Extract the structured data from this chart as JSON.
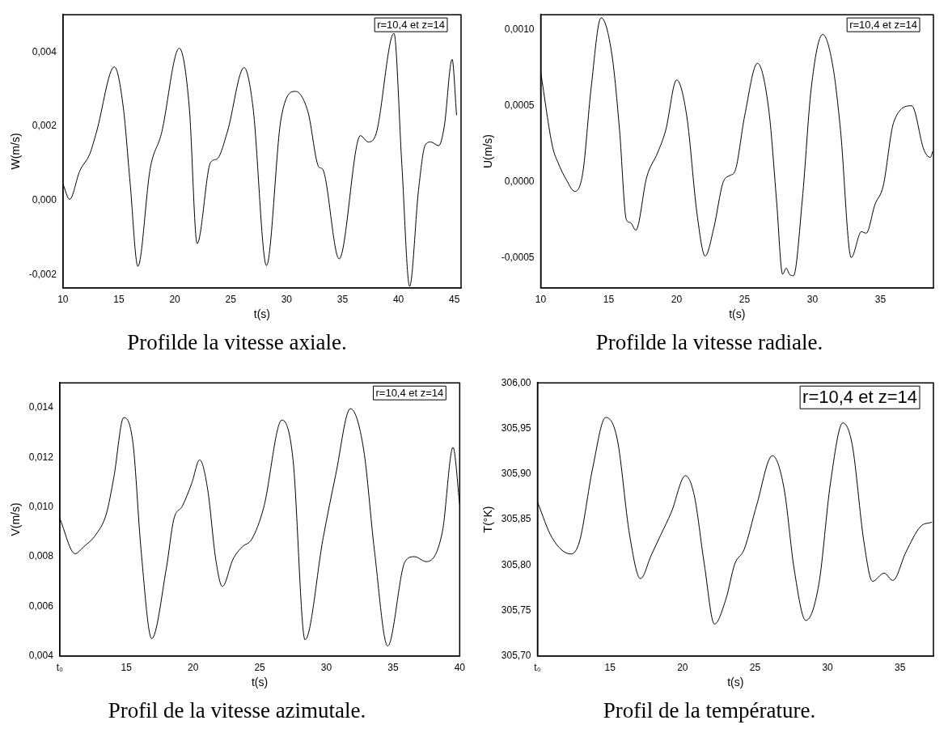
{
  "chart_data": [
    {
      "type": "line",
      "title": "Profilde la vitesse axiale.",
      "xlabel": "t(s)",
      "ylabel": "W(m/s)",
      "annotations": [
        "r=10,4 et z=14"
      ],
      "color": "#000000",
      "x": [
        10,
        10.6,
        11.5,
        12.4,
        13.0,
        14.6,
        15.4,
        16.0,
        16.7,
        17.8,
        18.8,
        20.4,
        21.3,
        22.0,
        23.2,
        23.8,
        24.7,
        26.2,
        27.0,
        28.2,
        29.5,
        30.8,
        31.9,
        32.9,
        33.2,
        34.7,
        36.6,
        37.3,
        38.0,
        39.6,
        40.3,
        41.0,
        41.8,
        42.4,
        42.9,
        43.6,
        44.1,
        44.8,
        45.2
      ],
      "values": [
        0.00045,
        4e-05,
        0.0008,
        0.00126,
        0.00185,
        0.0036,
        0.0025,
        0.0005,
        -0.00176,
        0.00086,
        0.0018,
        0.0041,
        0.0025,
        -0.00115,
        0.00103,
        0.00113,
        0.00185,
        0.00358,
        0.0025,
        -0.00174,
        0.0022,
        0.00294,
        0.0024,
        0.0009,
        0.00086,
        -0.00156,
        0.00175,
        0.00158,
        0.0018,
        0.0045,
        0.001,
        -0.0023,
        0.0003,
        0.0015,
        0.00158,
        0.00148,
        0.002,
        0.0038,
        0.0023
      ],
      "xlim": [
        10,
        45.6
      ],
      "ylim": [
        -0.00234,
        0.005
      ],
      "xticks": [
        10,
        15,
        20,
        25,
        30,
        35,
        40,
        45
      ],
      "yticks": [
        {
          "value": -0.002,
          "label": "-0,002"
        },
        {
          "value": 0,
          "label": "0,000"
        },
        {
          "value": 0.002,
          "label": "0,002"
        },
        {
          "value": 0.004,
          "label": "0,004"
        }
      ]
    },
    {
      "type": "line",
      "title": "Profilde la vitesse radiale.",
      "xlabel": "t(s)",
      "ylabel": "U(m/s)",
      "annotations": [
        "r=10,4 et z=14"
      ],
      "color": "#000000",
      "x": [
        10,
        10.87,
        11.3,
        11.9,
        12.5,
        13.1,
        13.7,
        14.44,
        15.25,
        15.8,
        16.3,
        16.6,
        17.0,
        17.8,
        18.6,
        19.2,
        20.0,
        20.75,
        21.5,
        22.1,
        22.75,
        23.4,
        23.9,
        24.3,
        25.0,
        25.95,
        26.8,
        27.35,
        27.8,
        28.07,
        28.3,
        28.6,
        29.25,
        29.9,
        30.75,
        31.5,
        32.06,
        32.85,
        33.6,
        33.95,
        34.6,
        35.2,
        35.97,
        37.3,
        38.2,
        38.67,
        38.85
      ],
      "values": [
        0.00072,
        0.00023,
        0.00012,
        1e-05,
        -6.4e-05,
        6e-05,
        0.00061,
        0.00108,
        0.00083,
        0.00034,
        -0.00025,
        -0.00027,
        -0.00032,
        3e-05,
        0.00019,
        0.00034,
        0.00067,
        0.00043,
        -0.00021,
        -0.00049,
        -0.0003,
        -1e-05,
        4e-05,
        7e-05,
        0.00043,
        0.00078,
        0.00046,
        -0.00012,
        -0.00061,
        -0.00057,
        -0.00061,
        -0.00062,
        -0.00012,
        0.00061,
        0.00097,
        0.00076,
        0.00034,
        -0.0005,
        -0.00033,
        -0.00034,
        -0.00015,
        -3e-05,
        0.00039,
        0.0005,
        0.00021,
        0.00016,
        0.0002
      ],
      "xlim": [
        10,
        38.9
      ],
      "ylim": [
        -0.0007,
        0.0011
      ],
      "xticks": [
        10,
        15,
        20,
        25,
        30,
        35
      ],
      "yticks": [
        {
          "value": -0.0005,
          "label": "-0,0005"
        },
        {
          "value": 0,
          "label": "0,0000"
        },
        {
          "value": 0.0005,
          "label": "0,0005"
        },
        {
          "value": 0.001,
          "label": "0,0010"
        }
      ]
    },
    {
      "type": "line",
      "title": "Profil de la vitesse azimutale.",
      "xlabel": "t(s)",
      "ylabel": "V(m/s)",
      "annotations": [
        "r=10,4 et z=14"
      ],
      "color": "#000000",
      "x": [
        10,
        11.15,
        11.8,
        12.7,
        13.5,
        14.06,
        14.8,
        15.5,
        16.1,
        16.9,
        18.0,
        18.55,
        19.2,
        19.9,
        20.5,
        21.1,
        21.7,
        22.2,
        23.0,
        23.7,
        24.4,
        25.3,
        26.66,
        27.5,
        28.4,
        29.76,
        30.7,
        31.8,
        32.8,
        33.6,
        34.6,
        35.9,
        36.6,
        37.5,
        38.7,
        39.5,
        40
      ],
      "values": [
        0.00955,
        0.00812,
        0.0084,
        0.00888,
        0.00973,
        0.0112,
        0.0136,
        0.01254,
        0.00827,
        0.0047,
        0.00754,
        0.00949,
        0.01004,
        0.01095,
        0.0119,
        0.0107,
        0.0079,
        0.0068,
        0.0079,
        0.0084,
        0.0087,
        0.00998,
        0.0135,
        0.0119,
        0.00465,
        0.00876,
        0.0113,
        0.01396,
        0.0123,
        0.00827,
        0.0044,
        0.0078,
        0.008,
        0.0078,
        0.009,
        0.0124,
        0.0101
      ],
      "xlim": [
        10,
        40
      ],
      "ylim": [
        0.004,
        0.015
      ],
      "xticks": [
        {
          "value": 10,
          "label": "t₀"
        },
        15,
        20,
        25,
        30,
        35,
        40
      ],
      "yticks": [
        {
          "value": 0.004,
          "label": "0,004"
        },
        {
          "value": 0.006,
          "label": "0,006"
        },
        {
          "value": 0.008,
          "label": "0,008"
        },
        {
          "value": 0.01,
          "label": "0,010"
        },
        {
          "value": 0.012,
          "label": "0,012"
        },
        {
          "value": 0.014,
          "label": "0,014"
        }
      ]
    },
    {
      "type": "line",
      "title": "Profil de la température.",
      "xlabel": "t(s)",
      "ylabel": "T(°K)",
      "annotations": [
        "r=10,4 et z=14"
      ],
      "color": "#000000",
      "x": [
        10,
        11.0,
        12.3,
        12.9,
        13.8,
        14.7,
        15.5,
        16.35,
        17.1,
        17.85,
        18.5,
        19.23,
        20.2,
        20.8,
        21.5,
        22.2,
        23.0,
        23.6,
        24.25,
        25.1,
        26.2,
        27.0,
        27.7,
        28.5,
        29.4,
        30.2,
        31.05,
        31.7,
        32.5,
        33.1,
        33.9,
        34.5,
        35.4,
        36.4,
        37.2
      ],
      "values": [
        305.869,
        305.83,
        305.812,
        305.826,
        305.906,
        305.962,
        305.938,
        305.833,
        305.785,
        305.811,
        305.833,
        305.858,
        305.898,
        305.877,
        305.801,
        305.735,
        305.763,
        305.801,
        305.817,
        305.865,
        305.92,
        305.884,
        305.795,
        305.739,
        305.779,
        305.89,
        305.956,
        305.932,
        305.826,
        305.782,
        305.791,
        305.783,
        305.814,
        305.842,
        305.847
      ],
      "xlim": [
        10,
        37.3
      ],
      "ylim": [
        305.7,
        306.0
      ],
      "xticks": [
        {
          "value": 10,
          "label": "t₀"
        },
        15,
        20,
        25,
        30,
        35
      ],
      "yticks": [
        {
          "value": 305.7,
          "label": "305,70"
        },
        {
          "value": 305.75,
          "label": "305,75"
        },
        {
          "value": 305.8,
          "label": "305,80"
        },
        {
          "value": 305.85,
          "label": "305,85"
        },
        {
          "value": 305.9,
          "label": "305,90"
        },
        {
          "value": 305.95,
          "label": "305,95"
        },
        {
          "value": 306.0,
          "label": "306,00"
        }
      ]
    }
  ]
}
